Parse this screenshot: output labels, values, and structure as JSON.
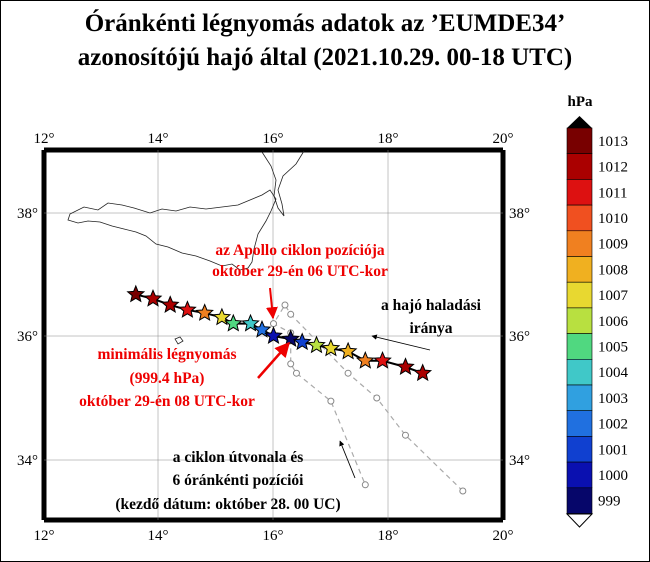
{
  "title": {
    "line1": "Óránkénti légnyomás adatok az ’EUMDE34’",
    "line2": "azonosítójú hajó által (2021.10.29. 00-18 UTC)"
  },
  "map": {
    "lon_ticks": [
      "12°",
      "14°",
      "16°",
      "18°",
      "20°"
    ],
    "lat_ticks": [
      "38°",
      "36°",
      "34°"
    ],
    "lon_range": [
      12,
      20
    ],
    "lat_range": [
      32.9,
      39.0
    ],
    "colors": {
      "ship_track": "#000000",
      "cyclone_track": "#aaaaaa",
      "annotation_red": "#ee0000",
      "annotation_black": "#000000"
    }
  },
  "colorbar": {
    "unit": "hPa",
    "labels": [
      "1013",
      "1012",
      "1011",
      "1010",
      "1009",
      "1008",
      "1007",
      "1006",
      "1005",
      "1004",
      "1003",
      "1002",
      "1001",
      "1000",
      "999"
    ],
    "colors": [
      "#780000",
      "#aa0000",
      "#dd1111",
      "#f05020",
      "#f08020",
      "#f0b020",
      "#e8d830",
      "#b8e040",
      "#50d880",
      "#40c8c8",
      "#30a0e0",
      "#2070e0",
      "#1040d0",
      "#0a10b0",
      "#06066a"
    ]
  },
  "annotations": {
    "apollo": [
      "az Apollo ciklon pozíciója",
      "október 29-én 06 UTC-kor"
    ],
    "minimum": [
      "minimális légnyomás",
      "(999.4 hPa)",
      "október 29-én 08 UTC-kor"
    ],
    "direction": [
      "a hajó haladási",
      "iránya"
    ],
    "cyclone_path": [
      "a ciklon útvonala és",
      "6 óránkénti pozíciói",
      "(kezdő dátum: október 28. 00 UC)"
    ]
  },
  "chart_data": {
    "type": "scatter",
    "series": [
      {
        "ship_track_points": [
          {
            "lon": 13.6,
            "lat": 36.67,
            "p": 1012.6
          },
          {
            "lon": 13.9,
            "lat": 36.6,
            "p": 1012.3
          },
          {
            "lon": 14.2,
            "lat": 36.5,
            "p": 1011.8
          },
          {
            "lon": 14.5,
            "lat": 36.42,
            "p": 1010.6
          },
          {
            "lon": 14.8,
            "lat": 36.37,
            "p": 1008.8
          },
          {
            "lon": 15.1,
            "lat": 36.3,
            "p": 1007.4
          },
          {
            "lon": 15.3,
            "lat": 36.2,
            "p": 1005.0
          },
          {
            "lon": 15.6,
            "lat": 36.2,
            "p": 1004.2
          },
          {
            "lon": 15.8,
            "lat": 36.1,
            "p": 1001.5
          },
          {
            "lon": 16.0,
            "lat": 36.0,
            "p": 1000.0
          },
          {
            "lon": 16.3,
            "lat": 35.95,
            "p": 999.4
          },
          {
            "lon": 16.5,
            "lat": 35.9,
            "p": 1000.8
          },
          {
            "lon": 16.75,
            "lat": 35.85,
            "p": 1005.5
          },
          {
            "lon": 17.0,
            "lat": 35.8,
            "p": 1006.5
          },
          {
            "lon": 17.3,
            "lat": 35.75,
            "p": 1007.6
          },
          {
            "lon": 17.6,
            "lat": 35.6,
            "p": 1008.9
          },
          {
            "lon": 17.9,
            "lat": 35.6,
            "p": 1010.5
          },
          {
            "lon": 18.3,
            "lat": 35.5,
            "p": 1011.5
          },
          {
            "lon": 18.6,
            "lat": 35.4,
            "p": 1012.0
          }
        ]
      },
      {
        "cyclone_positions": [
          {
            "lon": 19.3,
            "lat": 33.5
          },
          {
            "lon": 18.3,
            "lat": 34.4
          },
          {
            "lon": 17.8,
            "lat": 35.0
          },
          {
            "lon": 17.3,
            "lat": 35.4
          },
          {
            "lon": 16.3,
            "lat": 36.35
          },
          {
            "lon": 16.2,
            "lat": 36.5
          },
          {
            "lon": 16.0,
            "lat": 36.2
          },
          {
            "lon": 16.3,
            "lat": 36.05
          },
          {
            "lon": 16.3,
            "lat": 35.55
          },
          {
            "lon": 16.4,
            "lat": 35.4
          },
          {
            "lon": 17.0,
            "lat": 34.95
          },
          {
            "lon": 17.6,
            "lat": 33.6
          }
        ]
      }
    ]
  }
}
